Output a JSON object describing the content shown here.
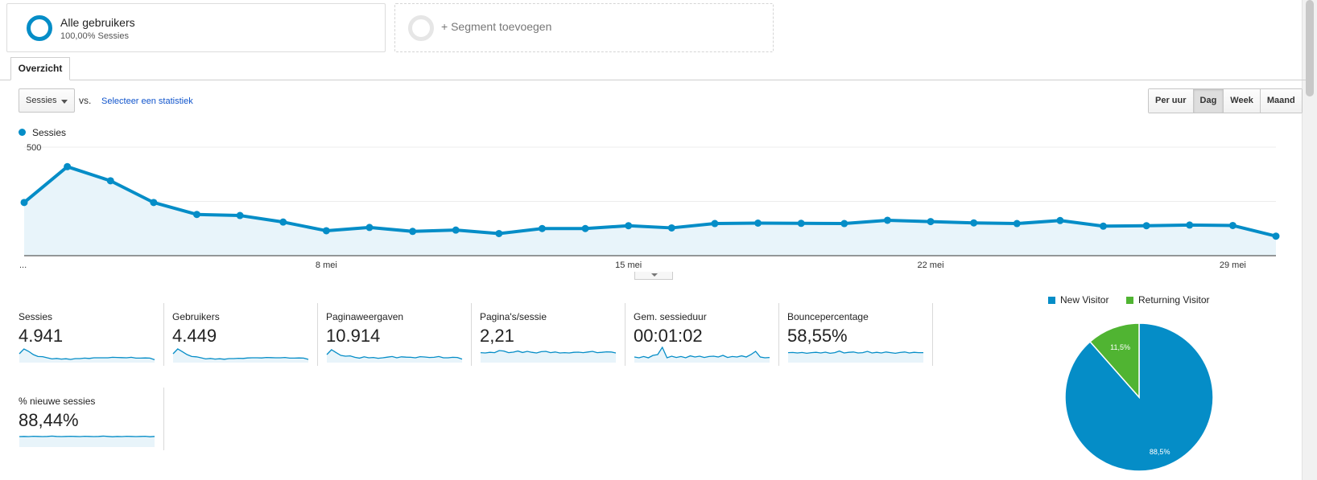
{
  "segments": {
    "active": {
      "title": "Alle gebruikers",
      "subtitle": "100,00% Sessies"
    },
    "add_label": "+ Segment toevoegen"
  },
  "tabs": [
    {
      "label": "Overzicht"
    }
  ],
  "controls": {
    "metric_selected": "Sessies",
    "vs_label": "vs.",
    "select_metric_link": "Selecteer een statistiek",
    "granularity": [
      "Per uur",
      "Dag",
      "Week",
      "Maand"
    ],
    "granularity_active": "Dag"
  },
  "colors": {
    "accent": "#058dc7",
    "area_fill": "#e8f4fa",
    "returning": "#50b432"
  },
  "chart_data": [
    {
      "type": "area",
      "series": [
        {
          "name": "Sessies",
          "values": [
            245,
            410,
            345,
            245,
            190,
            185,
            155,
            115,
            130,
            112,
            118,
            102,
            125,
            125,
            138,
            128,
            148,
            150,
            149,
            148,
            163,
            157,
            151,
            148,
            162,
            136,
            138,
            141,
            139,
            90
          ]
        }
      ],
      "x_tick_labels": [
        "...",
        "8 mei",
        "15 mei",
        "22 mei",
        "29 mei"
      ],
      "x_tick_index": [
        0,
        7,
        14,
        21,
        28
      ],
      "yticks": [
        250,
        500
      ],
      "ylim": [
        0,
        500
      ],
      "grid": true,
      "legend": "top-left"
    },
    {
      "type": "pie",
      "labels": [
        "New Visitor",
        "Returning Visitor"
      ],
      "values": [
        88.5,
        11.5
      ],
      "value_labels": [
        "88,5%",
        "11,5%"
      ],
      "colors": [
        "#058dc7",
        "#50b432"
      ],
      "legend": "top"
    }
  ],
  "metrics": [
    {
      "label": "Sessies",
      "value": "4.941",
      "spark": [
        0.55,
        0.85,
        0.7,
        0.5,
        0.38,
        0.37,
        0.3,
        0.23,
        0.26,
        0.22,
        0.24,
        0.2,
        0.25,
        0.25,
        0.28,
        0.26,
        0.3,
        0.3,
        0.3,
        0.3,
        0.33,
        0.32,
        0.31,
        0.3,
        0.33,
        0.28,
        0.28,
        0.29,
        0.28,
        0.18
      ]
    },
    {
      "label": "Gebruikers",
      "value": "4.449",
      "spark": [
        0.55,
        0.85,
        0.68,
        0.5,
        0.38,
        0.36,
        0.3,
        0.23,
        0.26,
        0.22,
        0.24,
        0.21,
        0.25,
        0.25,
        0.27,
        0.26,
        0.29,
        0.3,
        0.3,
        0.29,
        0.32,
        0.31,
        0.3,
        0.3,
        0.32,
        0.28,
        0.28,
        0.29,
        0.28,
        0.2
      ]
    },
    {
      "label": "Paginaweergaven",
      "value": "10.914",
      "spark": [
        0.5,
        0.8,
        0.62,
        0.45,
        0.4,
        0.42,
        0.33,
        0.28,
        0.36,
        0.3,
        0.32,
        0.27,
        0.3,
        0.34,
        0.38,
        0.3,
        0.36,
        0.34,
        0.33,
        0.3,
        0.37,
        0.35,
        0.32,
        0.33,
        0.38,
        0.3,
        0.3,
        0.33,
        0.32,
        0.22
      ]
    },
    {
      "label": "Pagina's/sessie",
      "value": "2,21",
      "spark": [
        0.62,
        0.6,
        0.64,
        0.62,
        0.75,
        0.72,
        0.62,
        0.65,
        0.72,
        0.63,
        0.7,
        0.64,
        0.6,
        0.68,
        0.7,
        0.62,
        0.66,
        0.6,
        0.62,
        0.6,
        0.64,
        0.65,
        0.62,
        0.66,
        0.7,
        0.62,
        0.64,
        0.67,
        0.66,
        0.6
      ]
    },
    {
      "label": "Gem. sessieduur",
      "value": "00:01:02",
      "spark": [
        0.35,
        0.3,
        0.38,
        0.3,
        0.45,
        0.5,
        0.95,
        0.3,
        0.4,
        0.32,
        0.38,
        0.3,
        0.42,
        0.35,
        0.4,
        0.32,
        0.38,
        0.4,
        0.35,
        0.45,
        0.32,
        0.38,
        0.35,
        0.42,
        0.35,
        0.5,
        0.7,
        0.35,
        0.3,
        0.32
      ]
    },
    {
      "label": "Bouncepercentage",
      "value": "58,55%",
      "spark": [
        0.62,
        0.63,
        0.6,
        0.63,
        0.58,
        0.62,
        0.64,
        0.6,
        0.65,
        0.58,
        0.62,
        0.72,
        0.6,
        0.64,
        0.66,
        0.6,
        0.62,
        0.7,
        0.6,
        0.64,
        0.6,
        0.66,
        0.62,
        0.58,
        0.63,
        0.66,
        0.6,
        0.64,
        0.62,
        0.62
      ]
    },
    {
      "label": "% nieuwe sessies",
      "value": "88,44%",
      "spark": [
        0.65,
        0.66,
        0.65,
        0.67,
        0.66,
        0.65,
        0.66,
        0.68,
        0.66,
        0.65,
        0.66,
        0.67,
        0.66,
        0.65,
        0.67,
        0.66,
        0.65,
        0.66,
        0.68,
        0.66,
        0.64,
        0.66,
        0.65,
        0.67,
        0.66,
        0.65,
        0.66,
        0.67,
        0.64,
        0.66
      ]
    }
  ]
}
